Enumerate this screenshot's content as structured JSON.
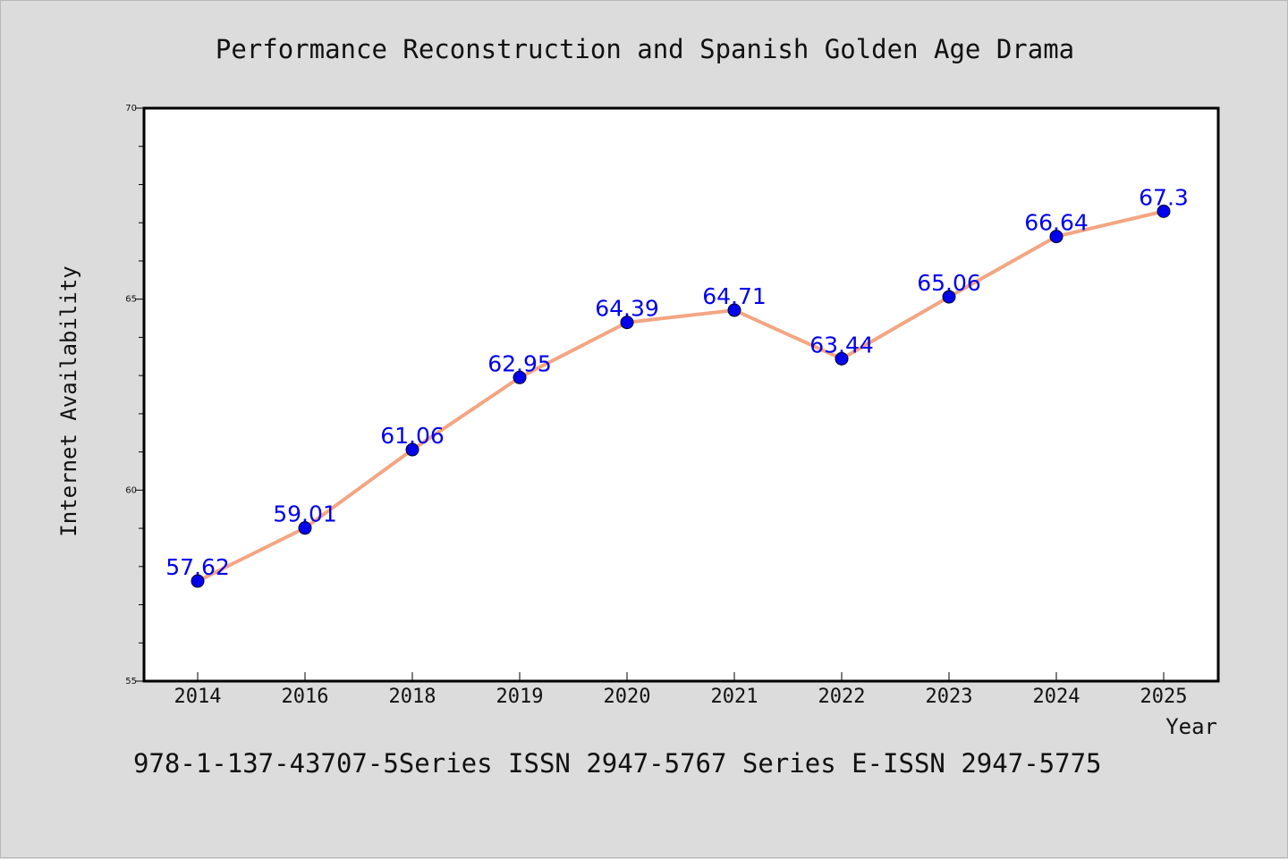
{
  "chart_data": {
    "type": "line",
    "title": "Performance Reconstruction and Spanish Golden Age Drama",
    "xlabel": "Year",
    "ylabel": "Internet Availability",
    "categories": [
      "2014",
      "2016",
      "2018",
      "2019",
      "2020",
      "2021",
      "2022",
      "2023",
      "2024",
      "2025"
    ],
    "series": [
      {
        "values": [
          57.62,
          59.01,
          61.06,
          62.95,
          64.39,
          64.71,
          63.44,
          65.06,
          66.64,
          67.3
        ]
      }
    ],
    "data_labels": [
      "57.62",
      "59.01",
      "61.06",
      "62.95",
      "64.39",
      "64.71",
      "63.44",
      "65.06",
      "66.64",
      "67.3"
    ],
    "ylim": [
      55,
      70
    ],
    "y_ticks": [
      "55",
      "60",
      "65",
      "70"
    ],
    "grid": false,
    "line_color": "#f4a582",
    "marker_color": "#0000ee",
    "label_color": "#0000ee"
  },
  "footer": {
    "text": "978-1-137-43707-5Series ISSN 2947-5767 Series E-ISSN 2947-5775"
  }
}
